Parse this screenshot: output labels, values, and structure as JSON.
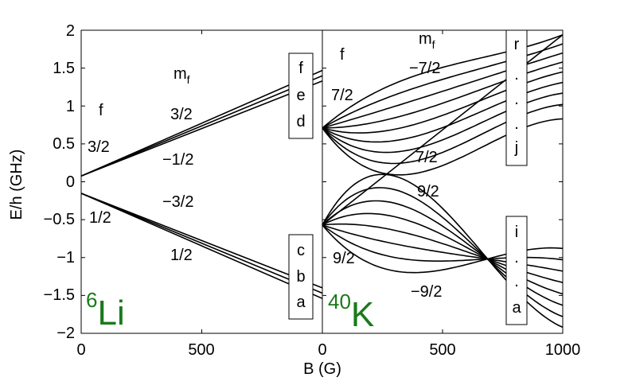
{
  "chart_data": {
    "type": "line",
    "xlabel": "B (G)",
    "ylabel": "E/h (GHz)",
    "ylim": [
      -2,
      2
    ],
    "y_ticks": [
      "2",
      "1.5",
      "1",
      "0.5",
      "0",
      "−0.5",
      "−1",
      "−1.5",
      "−2"
    ],
    "y_tick_values": [
      2,
      1.5,
      1,
      0.5,
      0,
      -0.5,
      -1,
      -1.5,
      -2
    ],
    "accent_color": "#1a7a1a",
    "line_color": "#000000",
    "panels": [
      {
        "isotope_mass": "6",
        "isotope_symbol": "Li",
        "xlim": [
          0,
          1000
        ],
        "x_ticks": [
          "0",
          "500"
        ],
        "x_tick_values": [
          0,
          500
        ],
        "annotations": {
          "mf": "m",
          "mf_sub": "f",
          "f": "f",
          "upper_f": "3/2",
          "lower_f": "1/2",
          "mf_3_2": "3/2",
          "mf_m1_2": "−1/2",
          "mf_m3_2": "−3/2",
          "mf_1_2": "1/2"
        },
        "upper_box_letters": [
          "f",
          "e",
          "d"
        ],
        "lower_box_letters": [
          "c",
          "b",
          "a"
        ],
        "series": [
          {
            "label": "f",
            "values": [
              [
                0,
                0.076
              ],
              [
                1000,
                1.47
              ]
            ]
          },
          {
            "label": "e",
            "values": [
              [
                0,
                0.076
              ],
              [
                1000,
                1.4
              ]
            ]
          },
          {
            "label": "d",
            "values": [
              [
                0,
                0.076
              ],
              [
                1000,
                1.33
              ]
            ]
          },
          {
            "label": "c",
            "values": [
              [
                0,
                -0.152
              ],
              [
                1000,
                -1.4
              ]
            ]
          },
          {
            "label": "b",
            "values": [
              [
                0,
                -0.152
              ],
              [
                1000,
                -1.47
              ]
            ]
          },
          {
            "label": "a",
            "values": [
              [
                0,
                -0.152
              ],
              [
                1000,
                -1.54
              ]
            ]
          }
        ]
      },
      {
        "isotope_mass": "40",
        "isotope_symbol": "K",
        "xlim": [
          0,
          1000
        ],
        "x_ticks": [
          "0",
          "500",
          "1000"
        ],
        "x_tick_values": [
          0,
          500,
          1000
        ],
        "annotations": {
          "mf": "m",
          "mf_sub": "f",
          "f": "f",
          "upper_f": "7/2",
          "lower_f": "9/2",
          "mf_m7_2": "−7/2",
          "mf_7_2": "7/2",
          "mf_9_2": "9/2",
          "mf_m9_2": "−9/2"
        },
        "upper_box_letters": [
          "r",
          ".",
          ".",
          ".",
          "j"
        ],
        "lower_box_letters": [
          "i",
          ".",
          ".",
          "a"
        ],
        "upper_manifold": {
          "zero_field_energy": 0.71,
          "end_values_at_1000": [
            1.94,
            1.82,
            1.7,
            1.58,
            1.45,
            1.31,
            1.17,
            1.02,
            0.83
          ]
        },
        "lower_manifold": {
          "zero_field_energy": -0.57,
          "end_values_at_1000": [
            -0.88,
            -1.03,
            -1.18,
            -1.33,
            -1.48,
            -1.63,
            -1.78,
            -1.92
          ],
          "stretched_state_end_at_1000": 1.94
        }
      }
    ]
  }
}
